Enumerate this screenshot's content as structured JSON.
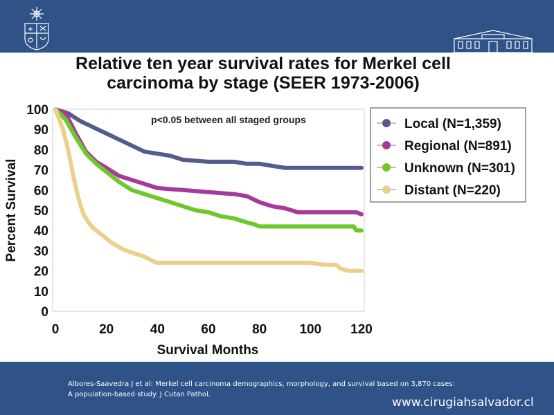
{
  "header": {
    "title_line1": "Relative ten year survival rates for Merkel cell",
    "title_line2": "carcinoma by stage (SEER 1973-2006)"
  },
  "footer": {
    "citation_line1": "Albores-Saavedra J et al: Merkel cell carcinoma demographics, morphology, and survival based on 3,870 cases:",
    "citation_line2": "A population-based  study.  J Cutan Pathol.",
    "website": "www.cirugiahsalvador.cl"
  },
  "colors": {
    "band": "#2f5289",
    "local": "#555a8f",
    "regional": "#a63a9a",
    "unknown": "#6ec82a",
    "distant": "#ead08c"
  },
  "chart_data": {
    "type": "line",
    "title": "Relative ten year survival rates for Merkel cell carcinoma by stage (SEER 1973-2006)",
    "xlabel": "Survival Months",
    "ylabel": "Percent Survival",
    "xlim": [
      0,
      120
    ],
    "ylim": [
      0,
      100
    ],
    "xticks": [
      0,
      20,
      40,
      60,
      80,
      100,
      120
    ],
    "yticks": [
      0,
      10,
      20,
      30,
      40,
      50,
      60,
      70,
      80,
      90,
      100
    ],
    "annotation": "p<0.05 between all staged groups",
    "legend_position": "right",
    "series": [
      {
        "name": "Local (N=1,359)",
        "color_key": "local",
        "points": [
          [
            0,
            100
          ],
          [
            5,
            98
          ],
          [
            10,
            94
          ],
          [
            15,
            91
          ],
          [
            20,
            88
          ],
          [
            25,
            85
          ],
          [
            30,
            82
          ],
          [
            35,
            79
          ],
          [
            40,
            78
          ],
          [
            45,
            77
          ],
          [
            50,
            75
          ],
          [
            60,
            74
          ],
          [
            70,
            74
          ],
          [
            75,
            73
          ],
          [
            80,
            73
          ],
          [
            85,
            72
          ],
          [
            90,
            71
          ],
          [
            100,
            71
          ],
          [
            110,
            71
          ],
          [
            120,
            71
          ]
        ]
      },
      {
        "name": "Regional (N=891)",
        "color_key": "regional",
        "points": [
          [
            0,
            100
          ],
          [
            4,
            98
          ],
          [
            8,
            88
          ],
          [
            12,
            79
          ],
          [
            16,
            74
          ],
          [
            20,
            71
          ],
          [
            25,
            67
          ],
          [
            30,
            65
          ],
          [
            35,
            63
          ],
          [
            40,
            61
          ],
          [
            50,
            60
          ],
          [
            60,
            59
          ],
          [
            70,
            58
          ],
          [
            75,
            57
          ],
          [
            80,
            54
          ],
          [
            85,
            52
          ],
          [
            90,
            51
          ],
          [
            95,
            49
          ],
          [
            100,
            49
          ],
          [
            110,
            49
          ],
          [
            118,
            49
          ],
          [
            120,
            48
          ]
        ]
      },
      {
        "name": "Unknown (N=301)",
        "color_key": "unknown",
        "points": [
          [
            0,
            100
          ],
          [
            4,
            95
          ],
          [
            8,
            86
          ],
          [
            12,
            78
          ],
          [
            16,
            73
          ],
          [
            20,
            69
          ],
          [
            25,
            64
          ],
          [
            30,
            60
          ],
          [
            35,
            58
          ],
          [
            40,
            56
          ],
          [
            45,
            54
          ],
          [
            50,
            52
          ],
          [
            55,
            50
          ],
          [
            60,
            49
          ],
          [
            65,
            47
          ],
          [
            70,
            46
          ],
          [
            75,
            44
          ],
          [
            78,
            43
          ],
          [
            80,
            42
          ],
          [
            90,
            42
          ],
          [
            100,
            42
          ],
          [
            110,
            42
          ],
          [
            117,
            42
          ],
          [
            118,
            40
          ],
          [
            120,
            40
          ]
        ]
      },
      {
        "name": "Distant (N=220)",
        "color_key": "distant",
        "points": [
          [
            0,
            100
          ],
          [
            3,
            90
          ],
          [
            5,
            80
          ],
          [
            7,
            67
          ],
          [
            9,
            56
          ],
          [
            11,
            48
          ],
          [
            13,
            44
          ],
          [
            15,
            41
          ],
          [
            18,
            38
          ],
          [
            22,
            34
          ],
          [
            26,
            31
          ],
          [
            30,
            29
          ],
          [
            35,
            27
          ],
          [
            38,
            25
          ],
          [
            40,
            24
          ],
          [
            50,
            24
          ],
          [
            60,
            24
          ],
          [
            70,
            24
          ],
          [
            80,
            24
          ],
          [
            100,
            24
          ],
          [
            105,
            23
          ],
          [
            110,
            23
          ],
          [
            112,
            21
          ],
          [
            115,
            20
          ],
          [
            120,
            20
          ]
        ]
      }
    ]
  }
}
